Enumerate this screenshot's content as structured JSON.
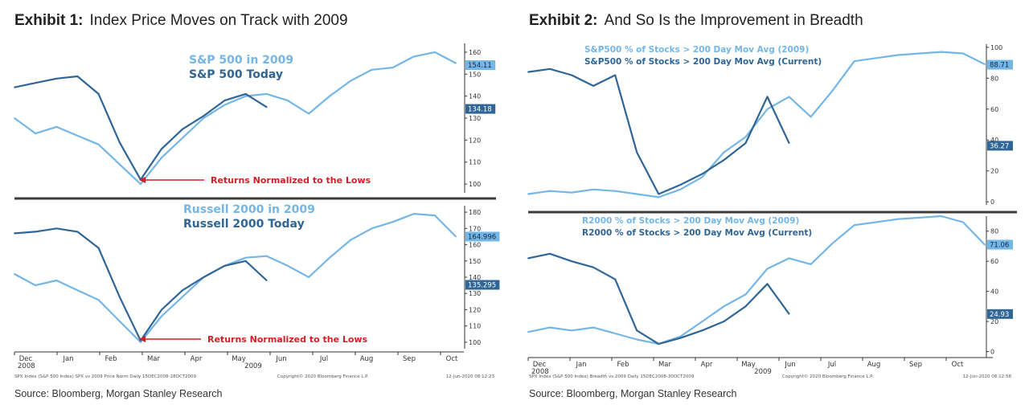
{
  "colors": {
    "series_2009": "#74b6e6",
    "series_current": "#2f6597",
    "annotation": "#d21f26",
    "divider": "#3c3c3c",
    "axis": "#333333"
  },
  "exhibits": [
    {
      "label": "Exhibit 1:",
      "title": "Index Price Moves on Track with 2009",
      "source": "Source: Bloomberg, Morgan Stanley Research",
      "footer_left": "SPX Index (S&P 500 Index) SPX vs 2009 Price Norm  Daily 15DEC2008-28OCT2009",
      "footer_mid": "Copyright© 2020 Bloomberg Finance L.P.",
      "footer_right": "12-Jun-2020 08:12:23",
      "x_ticks": [
        "Dec",
        "Jan",
        "Feb",
        "Mar",
        "Apr",
        "May",
        "Jun",
        "Jul",
        "Aug",
        "Sep",
        "Oct"
      ],
      "x_sub_left": "2008",
      "x_sub_mid": "2009"
    },
    {
      "label": "Exhibit 2:",
      "title": "And So Is the Improvement in Breadth",
      "source": "Source: Bloomberg, Morgan Stanley Research",
      "footer_left": "SPX Index (S&P 500 Index) Breadth vs 2009  Daily 15DEC2008-30OCT2009",
      "footer_mid": "Copyright© 2020 Bloomberg Finance L.P.",
      "footer_right": "12-Jun-2020 08:12:58",
      "x_ticks": [
        "Dec",
        "Jan",
        "Feb",
        "Mar",
        "Apr",
        "May",
        "Jun",
        "Jul",
        "Aug",
        "Sep",
        "Oct"
      ],
      "x_sub_left": "2008",
      "x_sub_mid": "2009"
    }
  ],
  "chart_data": [
    {
      "type": "line",
      "panel": "exhibit-1-top",
      "x": [
        "Dec",
        "Dec",
        "Jan",
        "Jan",
        "Feb",
        "Feb",
        "Mar",
        "Mar",
        "Apr",
        "Apr",
        "May",
        "May",
        "Jun",
        "Jun",
        "Jul",
        "Jul",
        "Aug",
        "Aug",
        "Sep",
        "Sep",
        "Oct",
        "Oct"
      ],
      "series": [
        {
          "name": "S&P 500 in 2009",
          "values": [
            130,
            123,
            126,
            122,
            118,
            109,
            100,
            112,
            121,
            130,
            136,
            140,
            141,
            138,
            132,
            140,
            147,
            152,
            153,
            158,
            160,
            155
          ]
        },
        {
          "name": "S&P 500 Today",
          "values": [
            144,
            146,
            148,
            149,
            141,
            119,
            102,
            116,
            125,
            131,
            138,
            141,
            135,
            null,
            null,
            null,
            null,
            null,
            null,
            null,
            null,
            null
          ]
        }
      ],
      "y_ticks": [
        100,
        110,
        120,
        130,
        140,
        150,
        160
      ],
      "ylim": [
        96,
        164
      ],
      "last_value_labels": [
        {
          "text": "154.11",
          "value": 154.11,
          "series": 0
        },
        {
          "text": "134.18",
          "value": 134.18,
          "series": 1
        }
      ],
      "annotation": "Returns Normalized to the Lows"
    },
    {
      "type": "line",
      "panel": "exhibit-1-bottom",
      "x": [
        "Dec",
        "Dec",
        "Jan",
        "Jan",
        "Feb",
        "Feb",
        "Mar",
        "Mar",
        "Apr",
        "Apr",
        "May",
        "May",
        "Jun",
        "Jun",
        "Jul",
        "Jul",
        "Aug",
        "Aug",
        "Sep",
        "Sep",
        "Oct",
        "Oct"
      ],
      "series": [
        {
          "name": "Russell 2000 in 2009",
          "values": [
            142,
            135,
            138,
            132,
            126,
            113,
            100,
            116,
            128,
            140,
            147,
            152,
            153,
            147,
            140,
            152,
            163,
            170,
            174,
            179,
            178,
            165
          ]
        },
        {
          "name": "Russell 2000 Today",
          "values": [
            167,
            168,
            170,
            168,
            158,
            128,
            101,
            120,
            132,
            140,
            147,
            150,
            138,
            null,
            null,
            null,
            null,
            null,
            null,
            null,
            null,
            null
          ]
        }
      ],
      "y_ticks": [
        100,
        110,
        120,
        130,
        140,
        150,
        160,
        170,
        180
      ],
      "ylim": [
        96,
        184
      ],
      "last_value_labels": [
        {
          "text": "164.996",
          "value": 164.996,
          "series": 0
        },
        {
          "text": "135.295",
          "value": 135.295,
          "series": 1
        }
      ],
      "annotation": "Returns Normalized to the Lows"
    },
    {
      "type": "line",
      "panel": "exhibit-2-top",
      "x": [
        "Dec",
        "Dec",
        "Jan",
        "Jan",
        "Feb",
        "Feb",
        "Mar",
        "Mar",
        "Apr",
        "Apr",
        "May",
        "May",
        "Jun",
        "Jun",
        "Jul",
        "Jul",
        "Aug",
        "Aug",
        "Sep",
        "Sep",
        "Oct",
        "Oct"
      ],
      "series": [
        {
          "name": "S&P500 % of Stocks > 200 Day Mov Avg (2009)",
          "values": [
            5,
            7,
            6,
            8,
            7,
            5,
            3,
            8,
            16,
            32,
            42,
            60,
            68,
            55,
            72,
            91,
            93,
            95,
            96,
            97,
            96,
            89
          ]
        },
        {
          "name": "S&P500 % of Stocks > 200 Day Mov Avg (Current)",
          "values": [
            84,
            86,
            82,
            75,
            82,
            32,
            5,
            11,
            18,
            27,
            38,
            68,
            38,
            null,
            null,
            null,
            null,
            null,
            null,
            null,
            null,
            null
          ]
        }
      ],
      "y_ticks": [
        0,
        20,
        40,
        60,
        80,
        100
      ],
      "ylim": [
        -2,
        102
      ],
      "last_value_labels": [
        {
          "text": "88.71",
          "value": 88.71,
          "series": 0
        },
        {
          "text": "36.27",
          "value": 36.27,
          "series": 1
        }
      ]
    },
    {
      "type": "line",
      "panel": "exhibit-2-bottom",
      "x": [
        "Dec",
        "Dec",
        "Jan",
        "Jan",
        "Feb",
        "Feb",
        "Mar",
        "Mar",
        "Apr",
        "Apr",
        "May",
        "May",
        "Jun",
        "Jun",
        "Jul",
        "Jul",
        "Aug",
        "Aug",
        "Sep",
        "Sep",
        "Oct",
        "Oct"
      ],
      "series": [
        {
          "name": "R2000 % of Stocks > 200 Day Mov Avg (2009)",
          "values": [
            13,
            16,
            14,
            16,
            12,
            8,
            5,
            10,
            20,
            30,
            38,
            55,
            62,
            58,
            72,
            84,
            86,
            88,
            89,
            90,
            86,
            71
          ]
        },
        {
          "name": "R2000 % of Stocks > 200 Day Mov Avg (Current)",
          "values": [
            62,
            65,
            60,
            56,
            48,
            14,
            5,
            9,
            14,
            20,
            30,
            45,
            25,
            null,
            null,
            null,
            null,
            null,
            null,
            null,
            null,
            null
          ]
        }
      ],
      "y_ticks": [
        0,
        20,
        40,
        60,
        80
      ],
      "ylim": [
        -4,
        90
      ],
      "last_value_labels": [
        {
          "text": "71.06",
          "value": 71.06,
          "series": 0
        },
        {
          "text": "24.93",
          "value": 24.93,
          "series": 1
        }
      ]
    }
  ]
}
